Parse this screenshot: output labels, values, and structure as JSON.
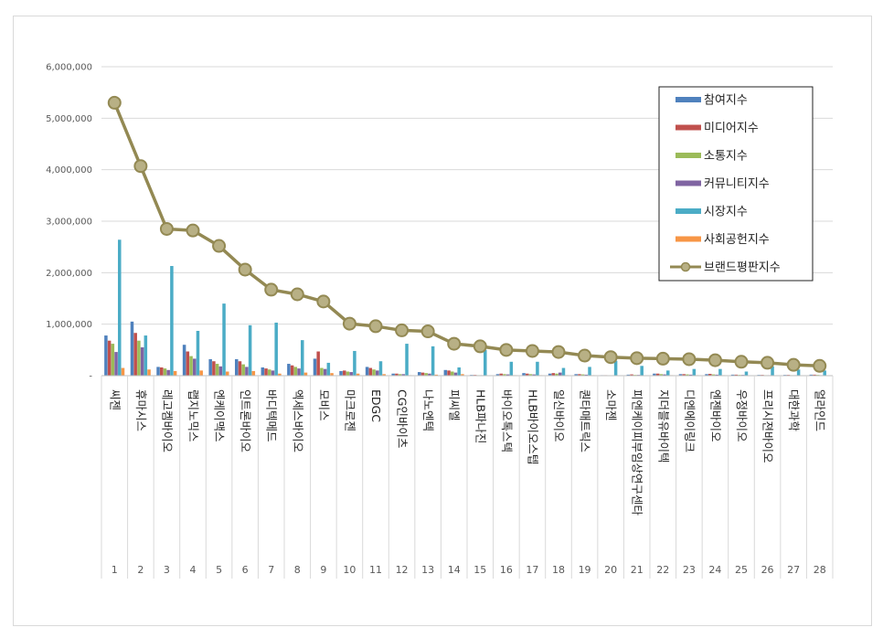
{
  "chart_data": {
    "type": "bar",
    "title": "",
    "xlabel": "",
    "ylabel": "",
    "ylim": [
      0,
      6000000
    ],
    "yticks": [
      "-",
      "1,000,000",
      "2,000,000",
      "3,000,000",
      "4,000,000",
      "5,000,000",
      "6,000,000"
    ],
    "yticks_values": [
      0,
      1000000,
      2000000,
      3000000,
      4000000,
      5000000,
      6000000
    ],
    "grid": true,
    "legend_position": "top-right",
    "numbers": [
      "1",
      "2",
      "3",
      "4",
      "5",
      "6",
      "7",
      "8",
      "9",
      "10",
      "11",
      "12",
      "13",
      "14",
      "15",
      "16",
      "17",
      "18",
      "19",
      "20",
      "21",
      "22",
      "23",
      "24",
      "25",
      "26",
      "27",
      "28"
    ],
    "categories": [
      "씨젠",
      "휴마시스",
      "레고켐바이오",
      "랩지노믹스",
      "엔케이맥스",
      "인트론바이오",
      "바디텍메드",
      "엑세스바이오",
      "모비스",
      "마크로젠",
      "EDGC",
      "CG인바이츠",
      "나노엔텍",
      "피씨엘",
      "HLB파나진",
      "바이오톡스텍",
      "HLB바이오스텝",
      "일신바이오",
      "퀀타매트릭스",
      "소마젠",
      "피엔케이피부임상연구센타",
      "지더블유바이텍",
      "디엔에이링크",
      "엔젠바이오",
      "우정바이오",
      "프리시젼바이오",
      "대한과학",
      "얼라인드"
    ],
    "series": [
      {
        "name": "참여지수",
        "color": "#4f81bd",
        "values": [
          780000,
          1050000,
          170000,
          600000,
          320000,
          320000,
          160000,
          230000,
          330000,
          90000,
          170000,
          40000,
          70000,
          110000,
          15000,
          30000,
          50000,
          40000,
          30000,
          10000,
          20000,
          40000,
          30000,
          30000,
          20000,
          15000,
          15000,
          20000
        ]
      },
      {
        "name": "미디어지수",
        "color": "#c0504d",
        "values": [
          680000,
          830000,
          160000,
          470000,
          280000,
          280000,
          140000,
          200000,
          470000,
          100000,
          150000,
          40000,
          60000,
          100000,
          15000,
          40000,
          40000,
          50000,
          30000,
          10000,
          25000,
          40000,
          30000,
          35000,
          20000,
          15000,
          15000,
          20000
        ]
      },
      {
        "name": "소통지수",
        "color": "#9bbb59",
        "values": [
          620000,
          680000,
          140000,
          380000,
          230000,
          220000,
          120000,
          170000,
          150000,
          80000,
          120000,
          30000,
          50000,
          80000,
          10000,
          30000,
          30000,
          40000,
          25000,
          8000,
          15000,
          30000,
          25000,
          25000,
          15000,
          10000,
          10000,
          15000
        ]
      },
      {
        "name": "커뮤니티지수",
        "color": "#8064a2",
        "values": [
          460000,
          550000,
          110000,
          330000,
          180000,
          170000,
          100000,
          140000,
          130000,
          70000,
          100000,
          30000,
          40000,
          60000,
          10000,
          25000,
          25000,
          60000,
          20000,
          8000,
          15000,
          25000,
          20000,
          20000,
          15000,
          10000,
          10000,
          10000
        ]
      },
      {
        "name": "시장지수",
        "color": "#4bacc6",
        "values": [
          2640000,
          780000,
          2130000,
          870000,
          1400000,
          980000,
          1030000,
          690000,
          250000,
          480000,
          280000,
          620000,
          570000,
          160000,
          500000,
          270000,
          270000,
          150000,
          170000,
          290000,
          190000,
          100000,
          130000,
          130000,
          80000,
          180000,
          120000,
          100000
        ]
      },
      {
        "name": "사회공헌지수",
        "color": "#f79646",
        "values": [
          150000,
          120000,
          90000,
          100000,
          80000,
          90000,
          40000,
          60000,
          50000,
          40000,
          30000,
          10000,
          20000,
          30000,
          5000,
          10000,
          10000,
          10000,
          10000,
          5000,
          5000,
          10000,
          10000,
          10000,
          5000,
          5000,
          5000,
          5000
        ]
      },
      {
        "name": "브랜드평판지수",
        "type": "line",
        "color": "#938953",
        "marker_color": "#b8b085",
        "values": [
          5300000,
          4070000,
          2850000,
          2820000,
          2520000,
          2060000,
          1670000,
          1580000,
          1440000,
          1010000,
          960000,
          880000,
          860000,
          620000,
          570000,
          500000,
          480000,
          460000,
          390000,
          360000,
          340000,
          330000,
          320000,
          300000,
          270000,
          250000,
          210000,
          190000
        ]
      }
    ]
  }
}
